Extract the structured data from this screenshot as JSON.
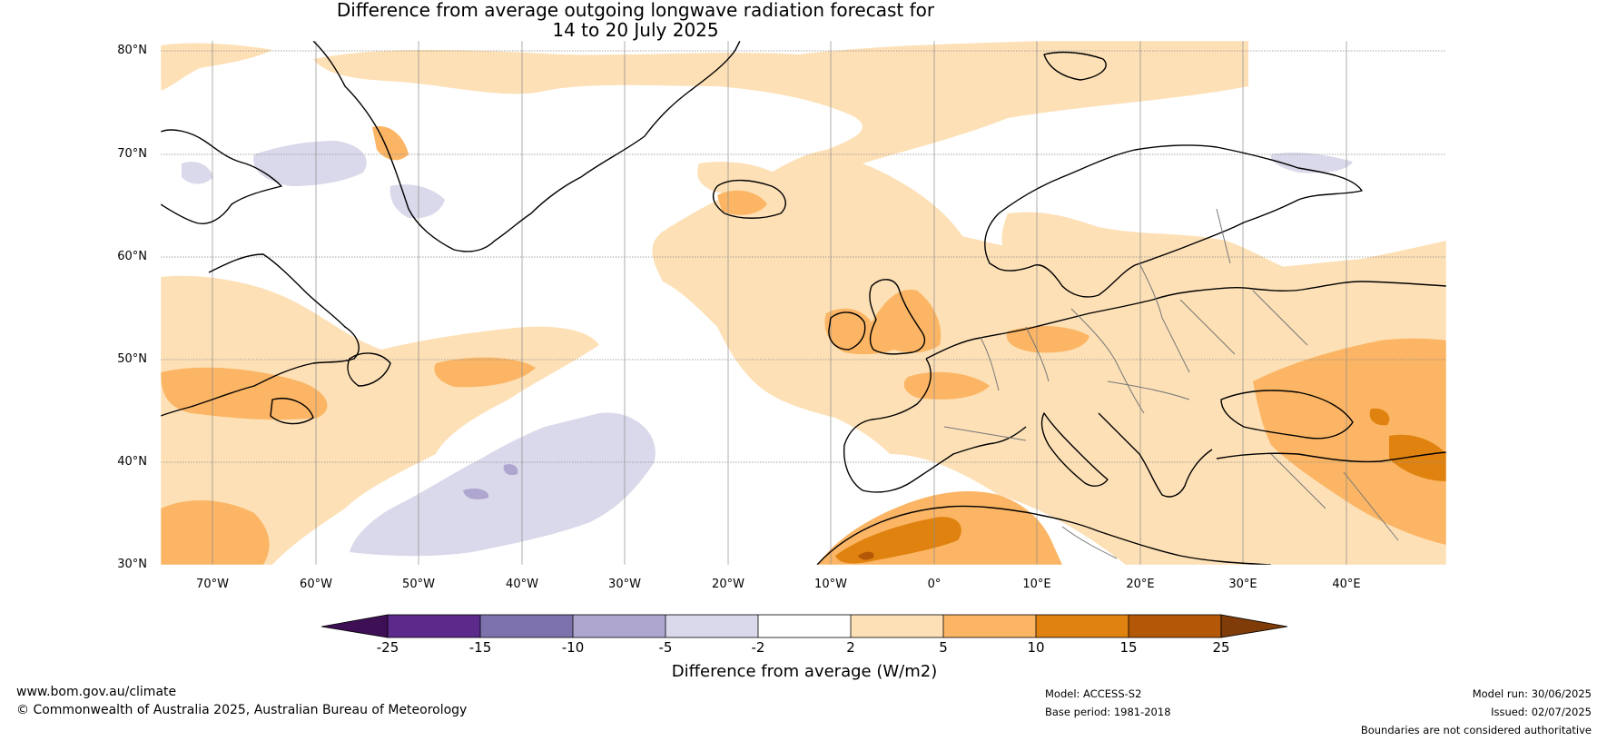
{
  "title": {
    "line1": "Difference from average outgoing longwave radiation forecast for",
    "line2": "14 to 20 July 2025"
  },
  "latitude_labels": [
    "80°N",
    "70°N",
    "60°N",
    "50°N",
    "40°N",
    "30°N"
  ],
  "longitude_labels": [
    "70°W",
    "60°W",
    "50°W",
    "40°W",
    "30°W",
    "20°W",
    "10°W",
    "0°",
    "10°E",
    "20°E",
    "30°E",
    "40°E"
  ],
  "colorbar": {
    "ticks": [
      "-25",
      "-15",
      "-10",
      "-5",
      "-2",
      "2",
      "5",
      "10",
      "15",
      "25"
    ],
    "colors": [
      "#3f0f56",
      "#5b2a8a",
      "#7e72ad",
      "#aea6cf",
      "#d9d9eb",
      "#ffffff",
      "#fde0b6",
      "#fbb564",
      "#e0820f",
      "#b35806",
      "#7f3b08"
    ],
    "label": "Difference from average (W/m2)"
  },
  "footer": {
    "website": "www.bom.gov.au/climate",
    "copyright": "© Commonwealth of Australia 2025, Australian Bureau of Meteorology",
    "model": "Model: ACCESS-S2",
    "base_period": "Base period: 1981-2018",
    "model_run": "Model run: 30/06/2025",
    "issued": "Issued: 02/07/2025",
    "disclaimer": "Boundaries are not considered authoritative"
  }
}
